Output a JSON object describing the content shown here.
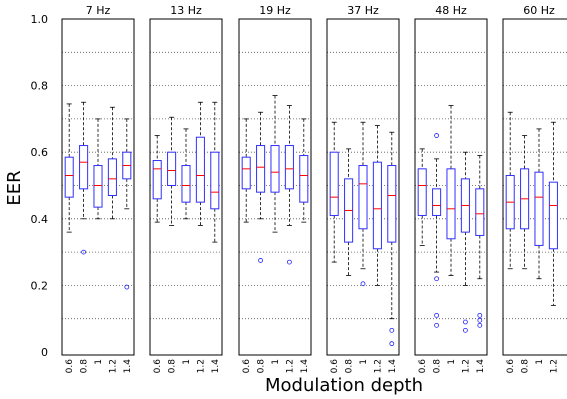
{
  "chart_data": {
    "type": "boxplot",
    "xlabel": "Modulation depth",
    "ylabel": "EER",
    "ylim": [
      0,
      1
    ],
    "yticks": [
      "0",
      "0.2",
      "0.4",
      "0.6",
      "0.8",
      "1.0"
    ],
    "categories": [
      "0.6",
      "0.8",
      "1",
      "1.2",
      "1.4"
    ],
    "grid": true,
    "panels": [
      {
        "title": "7 Hz",
        "boxes": [
          {
            "whislo": 0.36,
            "q1": 0.465,
            "med": 0.53,
            "q3": 0.585,
            "whishi": 0.745,
            "fliers": []
          },
          {
            "whislo": 0.4,
            "q1": 0.49,
            "med": 0.57,
            "q3": 0.62,
            "whishi": 0.75,
            "fliers": [
              0.3
            ]
          },
          {
            "whislo": 0.4,
            "q1": 0.435,
            "med": 0.5,
            "q3": 0.56,
            "whishi": 0.7,
            "fliers": []
          },
          {
            "whislo": 0.4,
            "q1": 0.47,
            "med": 0.52,
            "q3": 0.58,
            "whishi": 0.735,
            "fliers": []
          },
          {
            "whislo": 0.43,
            "q1": 0.52,
            "med": 0.56,
            "q3": 0.6,
            "whishi": 0.7,
            "fliers": [
              0.195
            ]
          }
        ]
      },
      {
        "title": "13 Hz",
        "boxes": [
          {
            "whislo": 0.39,
            "q1": 0.46,
            "med": 0.55,
            "q3": 0.575,
            "whishi": 0.65,
            "fliers": []
          },
          {
            "whislo": 0.38,
            "q1": 0.5,
            "med": 0.545,
            "q3": 0.6,
            "whishi": 0.705,
            "fliers": []
          },
          {
            "whislo": 0.4,
            "q1": 0.45,
            "med": 0.5,
            "q3": 0.56,
            "whishi": 0.67,
            "fliers": []
          },
          {
            "whislo": 0.38,
            "q1": 0.45,
            "med": 0.53,
            "q3": 0.645,
            "whishi": 0.75,
            "fliers": []
          },
          {
            "whislo": 0.33,
            "q1": 0.43,
            "med": 0.48,
            "q3": 0.6,
            "whishi": 0.75,
            "fliers": []
          }
        ]
      },
      {
        "title": "19 Hz",
        "boxes": [
          {
            "whislo": 0.39,
            "q1": 0.49,
            "med": 0.55,
            "q3": 0.585,
            "whishi": 0.7,
            "fliers": []
          },
          {
            "whislo": 0.4,
            "q1": 0.48,
            "med": 0.555,
            "q3": 0.62,
            "whishi": 0.72,
            "fliers": [
              0.275
            ]
          },
          {
            "whislo": 0.36,
            "q1": 0.48,
            "med": 0.54,
            "q3": 0.62,
            "whishi": 0.77,
            "fliers": []
          },
          {
            "whislo": 0.38,
            "q1": 0.49,
            "med": 0.55,
            "q3": 0.62,
            "whishi": 0.74,
            "fliers": [
              0.27
            ]
          },
          {
            "whislo": 0.39,
            "q1": 0.45,
            "med": 0.53,
            "q3": 0.59,
            "whishi": 0.7,
            "fliers": []
          }
        ]
      },
      {
        "title": "37 Hz",
        "boxes": [
          {
            "whislo": 0.27,
            "q1": 0.41,
            "med": 0.465,
            "q3": 0.6,
            "whishi": 0.69,
            "fliers": []
          },
          {
            "whislo": 0.23,
            "q1": 0.33,
            "med": 0.425,
            "q3": 0.52,
            "whishi": 0.61,
            "fliers": []
          },
          {
            "whislo": 0.25,
            "q1": 0.37,
            "med": 0.505,
            "q3": 0.56,
            "whishi": 0.69,
            "fliers": [
              0.205
            ]
          },
          {
            "whislo": 0.2,
            "q1": 0.31,
            "med": 0.43,
            "q3": 0.57,
            "whishi": 0.68,
            "fliers": []
          },
          {
            "whislo": 0.1,
            "q1": 0.33,
            "med": 0.47,
            "q3": 0.56,
            "whishi": 0.66,
            "fliers": [
              0.065,
              0.025
            ]
          }
        ]
      },
      {
        "title": "48 Hz",
        "boxes": [
          {
            "whislo": 0.32,
            "q1": 0.41,
            "med": 0.5,
            "q3": 0.55,
            "whishi": 0.61,
            "fliers": []
          },
          {
            "whislo": 0.24,
            "q1": 0.41,
            "med": 0.44,
            "q3": 0.49,
            "whishi": 0.58,
            "fliers": [
              0.65,
              0.22,
              0.11,
              0.08
            ]
          },
          {
            "whislo": 0.23,
            "q1": 0.34,
            "med": 0.43,
            "q3": 0.55,
            "whishi": 0.74,
            "fliers": []
          },
          {
            "whislo": 0.2,
            "q1": 0.36,
            "med": 0.44,
            "q3": 0.52,
            "whishi": 0.6,
            "fliers": [
              0.09,
              0.065
            ]
          },
          {
            "whislo": 0.22,
            "q1": 0.35,
            "med": 0.415,
            "q3": 0.49,
            "whishi": 0.59,
            "fliers": [
              0.11,
              0.095,
              0.08
            ]
          }
        ]
      },
      {
        "title": "60 Hz",
        "boxes": [
          {
            "whislo": 0.25,
            "q1": 0.37,
            "med": 0.45,
            "q3": 0.53,
            "whishi": 0.72,
            "fliers": []
          },
          {
            "whislo": 0.25,
            "q1": 0.37,
            "med": 0.46,
            "q3": 0.55,
            "whishi": 0.65,
            "fliers": []
          },
          {
            "whislo": 0.22,
            "q1": 0.32,
            "med": 0.465,
            "q3": 0.54,
            "whishi": 0.67,
            "fliers": []
          },
          {
            "whislo": 0.14,
            "q1": 0.31,
            "med": 0.44,
            "q3": 0.51,
            "whishi": 0.69,
            "fliers": []
          },
          {
            "whislo": 0.03,
            "q1": 0.27,
            "med": 0.44,
            "q3": 0.52,
            "whishi": 0.6,
            "fliers": []
          }
        ]
      }
    ]
  }
}
